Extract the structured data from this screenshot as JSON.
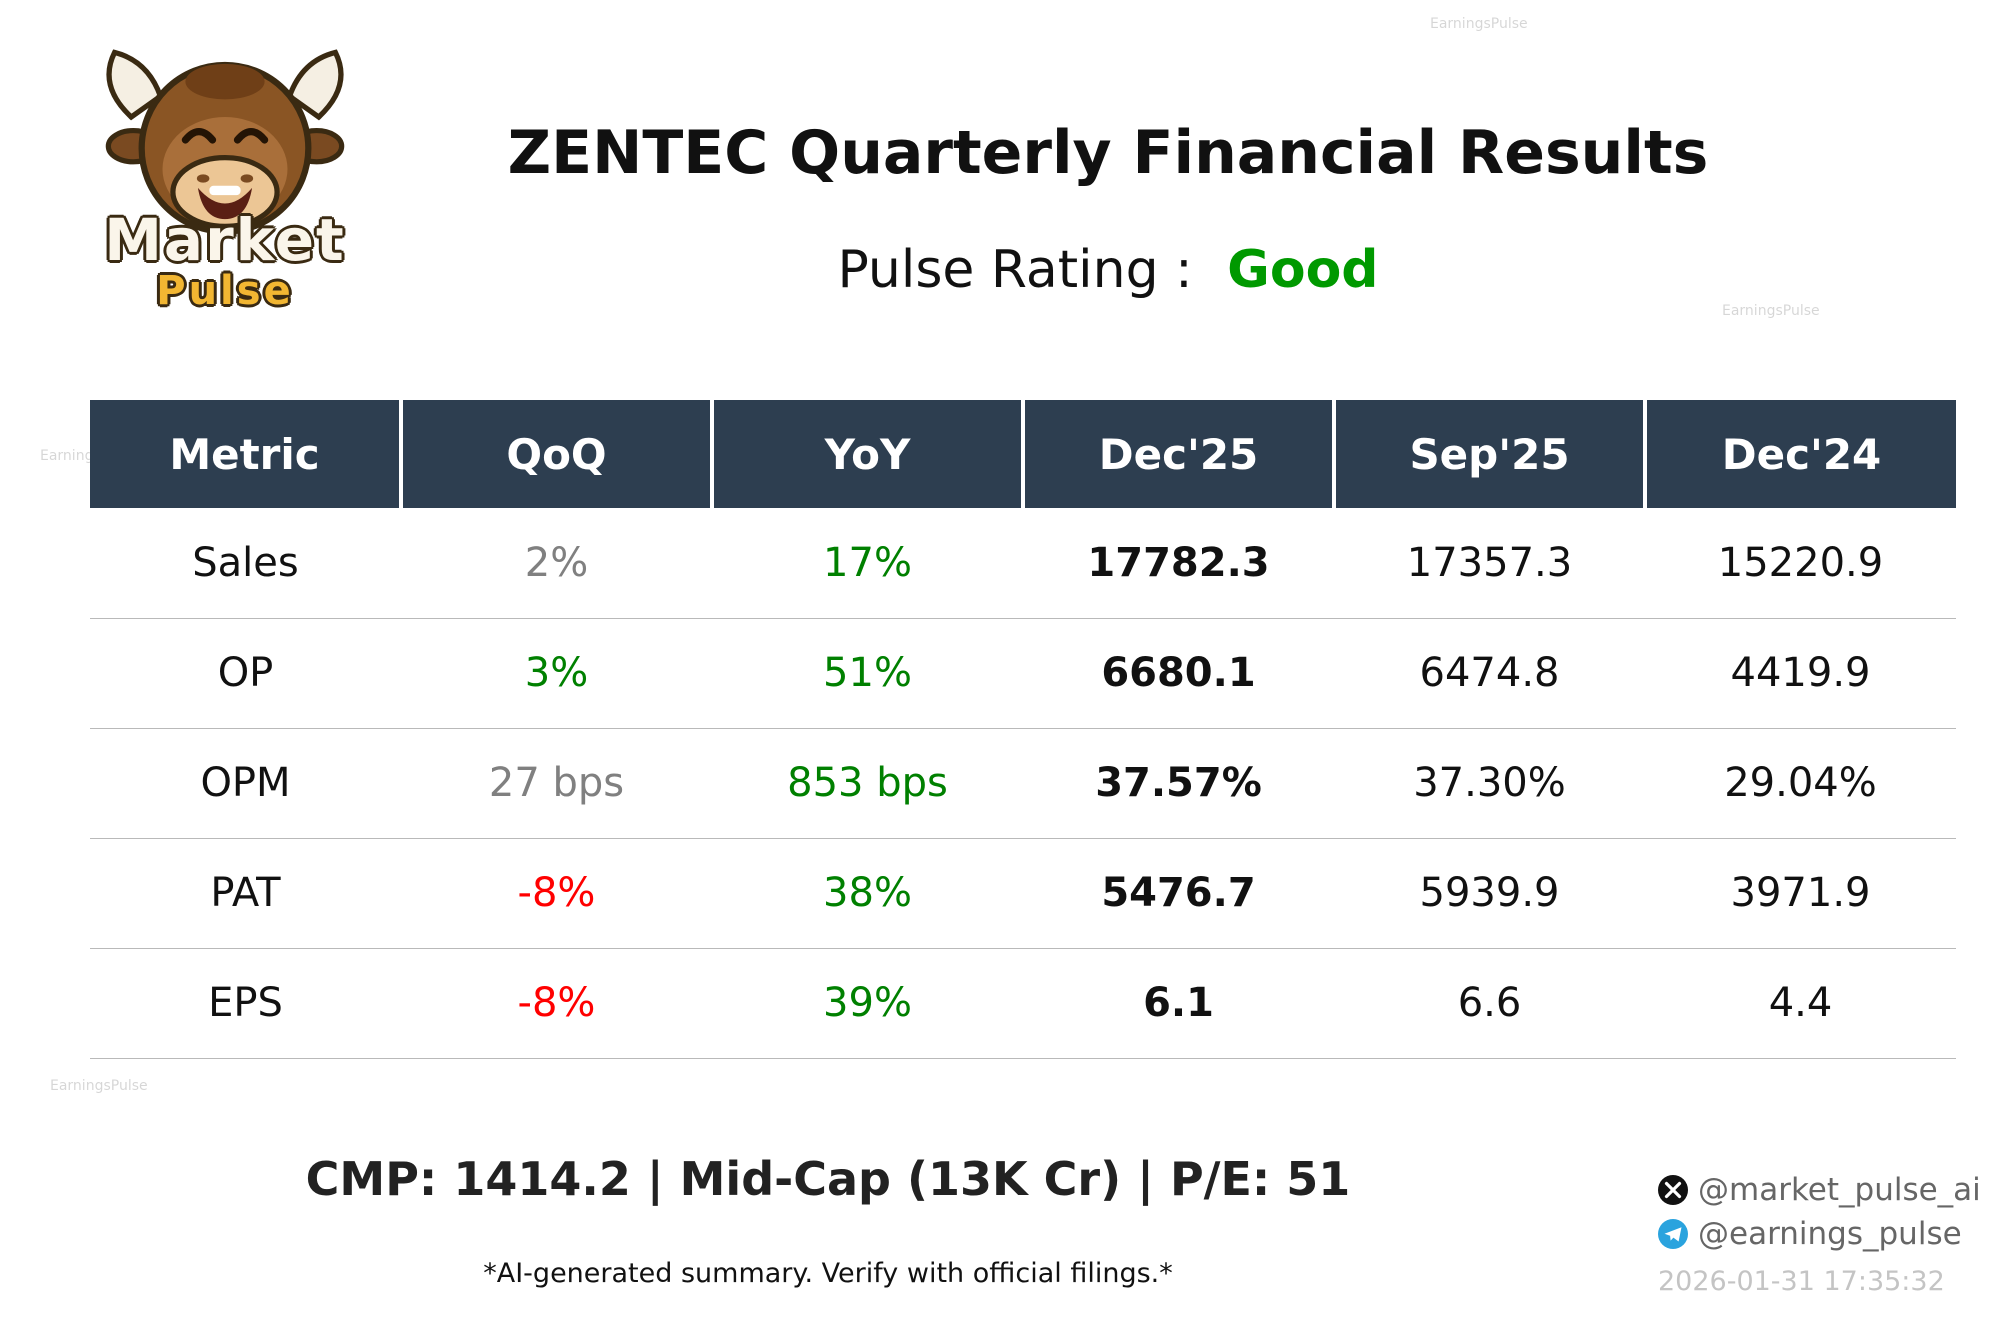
{
  "logo": {
    "line1": "Market",
    "line2": "Pulse"
  },
  "header": {
    "title": "ZENTEC Quarterly Financial Results",
    "rating_label": "Pulse Rating :",
    "rating_value": "Good",
    "rating_color": "#009900"
  },
  "chart_data": {
    "type": "table",
    "title": "ZENTEC Quarterly Financial Results",
    "columns": [
      "Metric",
      "QoQ",
      "YoY",
      "Dec'25",
      "Sep'25",
      "Dec'24"
    ],
    "rows": [
      {
        "cells": [
          {
            "text": "Sales",
            "color": "#111111"
          },
          {
            "text": "2%",
            "color": "#808080"
          },
          {
            "text": "17%",
            "color": "#008000"
          },
          {
            "text": "17782.3",
            "color": "#111111",
            "bold": true
          },
          {
            "text": "17357.3",
            "color": "#111111"
          },
          {
            "text": "15220.9",
            "color": "#111111"
          }
        ]
      },
      {
        "cells": [
          {
            "text": "OP",
            "color": "#111111"
          },
          {
            "text": "3%",
            "color": "#008000"
          },
          {
            "text": "51%",
            "color": "#008000"
          },
          {
            "text": "6680.1",
            "color": "#111111",
            "bold": true
          },
          {
            "text": "6474.8",
            "color": "#111111"
          },
          {
            "text": "4419.9",
            "color": "#111111"
          }
        ]
      },
      {
        "cells": [
          {
            "text": "OPM",
            "color": "#111111"
          },
          {
            "text": "27 bps",
            "color": "#808080"
          },
          {
            "text": "853 bps",
            "color": "#008000"
          },
          {
            "text": "37.57%",
            "color": "#111111",
            "bold": true
          },
          {
            "text": "37.30%",
            "color": "#111111"
          },
          {
            "text": "29.04%",
            "color": "#111111"
          }
        ]
      },
      {
        "cells": [
          {
            "text": "PAT",
            "color": "#111111"
          },
          {
            "text": "-8%",
            "color": "#ff0000"
          },
          {
            "text": "38%",
            "color": "#008000"
          },
          {
            "text": "5476.7",
            "color": "#111111",
            "bold": true
          },
          {
            "text": "5939.9",
            "color": "#111111"
          },
          {
            "text": "3971.9",
            "color": "#111111"
          }
        ]
      },
      {
        "cells": [
          {
            "text": "EPS",
            "color": "#111111"
          },
          {
            "text": "-8%",
            "color": "#ff0000"
          },
          {
            "text": "39%",
            "color": "#008000"
          },
          {
            "text": "6.1",
            "color": "#111111",
            "bold": true
          },
          {
            "text": "6.6",
            "color": "#111111"
          },
          {
            "text": "4.4",
            "color": "#111111"
          }
        ]
      }
    ]
  },
  "footer": {
    "summary": "CMP: 1414.2 | Mid-Cap (13K Cr) | P/E: 51",
    "disclaimer": "*AI-generated summary. Verify with official filings.*",
    "twitter_handle": "@market_pulse_ai",
    "telegram_handle": "@earnings_pulse",
    "timestamp": "2026-01-31 17:35:32"
  },
  "watermark": "EarningsPulse"
}
